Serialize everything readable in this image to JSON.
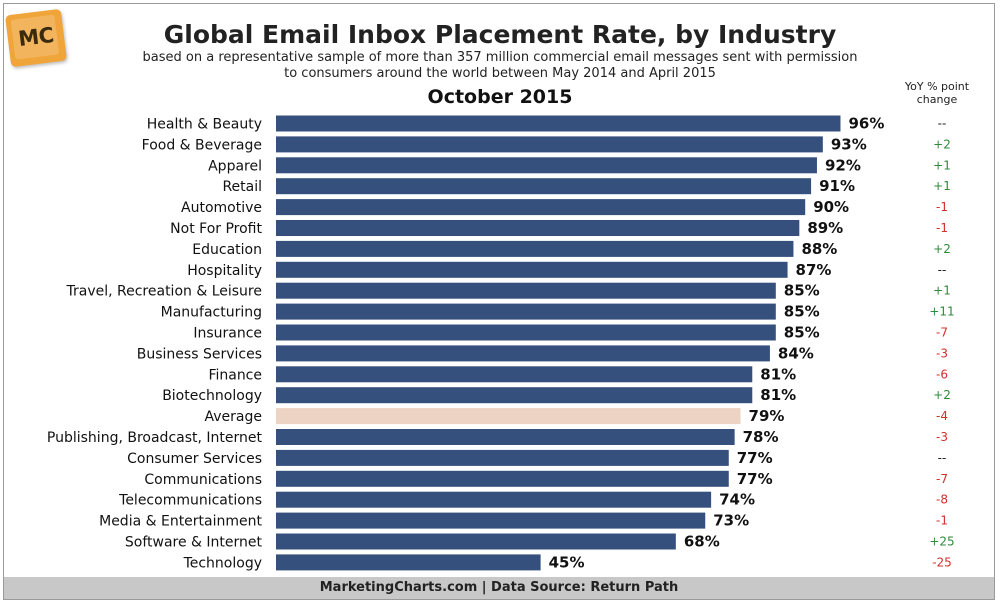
{
  "title": "Global Email Inbox Placement Rate, by Industry",
  "subtitle_line1": "based on a representative sample of more than 357 million commercial email messages sent with permission",
  "subtitle_line2": "to consumers around the world between May 2014 and April 2015",
  "period": "October 2015",
  "yoy_header_line1": "YoY % point",
  "yoy_header_line2": "change",
  "logo_text": "MC",
  "footer": "MarketingCharts.com | Data Source: Return Path",
  "colors": {
    "bar": "#36507d",
    "bar_highlight": "#ecd3c3",
    "positive": "#2f8a3a",
    "negative": "#d0312d",
    "neutral": "#222222"
  },
  "chart_data": {
    "type": "bar",
    "orientation": "horizontal",
    "categories": [
      "Health & Beauty",
      "Food & Beverage",
      "Apparel",
      "Retail",
      "Automotive",
      "Not For Profit",
      "Education",
      "Hospitality",
      "Travel, Recreation & Leisure",
      "Manufacturing",
      "Insurance",
      "Business Services",
      "Finance",
      "Biotechnology",
      "Average",
      "Publishing, Broadcast, Internet",
      "Consumer Services",
      "Communications",
      "Telecommunications",
      "Media & Entertainment",
      "Software & Internet",
      "Technology"
    ],
    "values": [
      96,
      93,
      92,
      91,
      90,
      89,
      88,
      87,
      85,
      85,
      85,
      84,
      81,
      81,
      79,
      78,
      77,
      77,
      74,
      73,
      68,
      45
    ],
    "value_labels": [
      "96%",
      "93%",
      "92%",
      "91%",
      "90%",
      "89%",
      "88%",
      "87%",
      "85%",
      "85%",
      "85%",
      "84%",
      "81%",
      "81%",
      "79%",
      "78%",
      "77%",
      "77%",
      "74%",
      "73%",
      "68%",
      "45%"
    ],
    "yoy_change": [
      "--",
      "+2",
      "+1",
      "+1",
      "-1",
      "-1",
      "+2",
      "--",
      "+1",
      "+11",
      "-7",
      "-3",
      "-6",
      "+2",
      "-4",
      "-3",
      "--",
      "-7",
      "-8",
      "-1",
      "+25",
      "-25"
    ],
    "highlight_category": "Average",
    "xlim": [
      0,
      100
    ],
    "grid": false,
    "legend": "none"
  }
}
